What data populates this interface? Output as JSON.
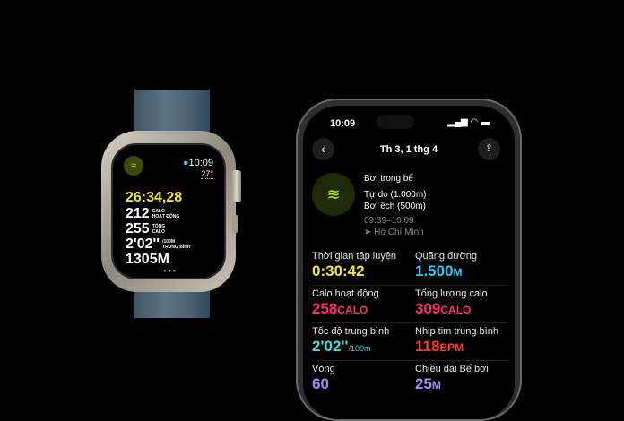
{
  "watch": {
    "time": "10:09",
    "temperature": "27°",
    "elapsed": "26:34,28",
    "metrics": [
      {
        "value": "212",
        "label1": "CALO",
        "label2": "HOẠT ĐỘNG"
      },
      {
        "value": "255",
        "label1": "TỔNG",
        "label2": "CALO"
      },
      {
        "value": "2'02''",
        "label1": "/100M",
        "label2": "TRUNG BÌNH"
      },
      {
        "value": "1305M",
        "label1": "",
        "label2": ""
      }
    ],
    "activity_icon": "swimmer-icon",
    "accent": "#f5e63b"
  },
  "phone": {
    "status_time": "10:09",
    "title": "Th 3, 1 thg 4",
    "workout": {
      "name": "Bơi trong bể",
      "styles": [
        "Tự do (1.000m)",
        "Bơi ếch (500m)"
      ],
      "time_range": "09:39–10:09",
      "location": "Hồ Chí Minh"
    },
    "stats": [
      {
        "label": "Thời gian tập luyện",
        "value": "0:30:42",
        "unit": "",
        "color": "#f5e63b"
      },
      {
        "label": "Quãng đường",
        "value": "1.500",
        "unit": "M",
        "color": "#39c6f4"
      },
      {
        "label": "Calo hoạt động",
        "value": "258",
        "unit": "CALO",
        "color": "#ff2d6b"
      },
      {
        "label": "Tổng lượng calo",
        "value": "309",
        "unit": "CALO",
        "color": "#ff2d6b"
      },
      {
        "label": "Tốc độ trung bình",
        "value": "2'02''",
        "unit": "/100m",
        "color": "#3fe0e0"
      },
      {
        "label": "Nhịp tim trung bình",
        "value": "118",
        "unit": "BPM",
        "color": "#ff3b1f"
      },
      {
        "label": "Vòng",
        "value": "60",
        "unit": "",
        "color": "#a78bfa"
      },
      {
        "label": "Chiều dài Bể bơi",
        "value": "25",
        "unit": "M",
        "color": "#a78bfa"
      }
    ]
  }
}
